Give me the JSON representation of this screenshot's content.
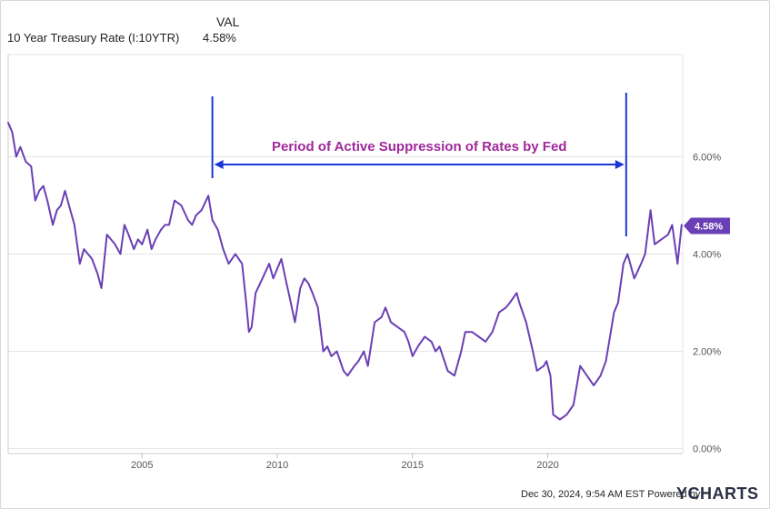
{
  "legend": {
    "header": "VAL",
    "series_name": "10 Year Treasury Rate (I:10YTR)",
    "series_value": "4.58%"
  },
  "footer": {
    "timestamp": "Dec 30, 2024, 9:54 AM EST",
    "powered_by": "Powered by",
    "brand": "YCHARTS"
  },
  "colors": {
    "line": "#6a3fb5",
    "annotation": "#1a37d6",
    "annotation_text": "#a0289a",
    "grid": "#e3e3e3"
  },
  "chart_data": {
    "type": "line",
    "title": "",
    "xlabel": "",
    "ylabel": "",
    "x_ticks": [
      "2005",
      "2010",
      "2015",
      "2020"
    ],
    "y_ticks": [
      "0.00%",
      "2.00%",
      "4.00%",
      "6.00%"
    ],
    "xlim": [
      2000.05,
      2024.99
    ],
    "ylim": [
      -0.1,
      8.1
    ],
    "grid": "horizontal",
    "last_value_label": "4.58%",
    "annotation": {
      "text": "Period of Active Suppression of Rates by Fed",
      "start_x": 2007.6,
      "end_x": 2022.9
    },
    "series": [
      {
        "name": "10 Year Treasury Rate (I:10YTR)",
        "x": [
          2000.05,
          2000.2,
          2000.35,
          2000.5,
          2000.7,
          2000.9,
          2001.05,
          2001.2,
          2001.35,
          2001.5,
          2001.7,
          2001.85,
          2002.0,
          2002.15,
          2002.3,
          2002.5,
          2002.7,
          2002.85,
          2003.0,
          2003.15,
          2003.35,
          2003.5,
          2003.7,
          2003.85,
          2004.0,
          2004.2,
          2004.35,
          2004.5,
          2004.7,
          2004.85,
          2005.0,
          2005.2,
          2005.35,
          2005.5,
          2005.7,
          2005.85,
          2006.0,
          2006.2,
          2006.45,
          2006.7,
          2006.85,
          2007.0,
          2007.2,
          2007.45,
          2007.6,
          2007.8,
          2008.0,
          2008.2,
          2008.45,
          2008.7,
          2008.85,
          2008.95,
          2009.05,
          2009.2,
          2009.45,
          2009.7,
          2009.85,
          2010.0,
          2010.15,
          2010.3,
          2010.5,
          2010.65,
          2010.85,
          2011.0,
          2011.15,
          2011.3,
          2011.5,
          2011.7,
          2011.85,
          2012.0,
          2012.2,
          2012.45,
          2012.6,
          2012.85,
          2013.0,
          2013.2,
          2013.35,
          2013.6,
          2013.85,
          2014.0,
          2014.2,
          2014.45,
          2014.7,
          2014.85,
          2015.0,
          2015.2,
          2015.45,
          2015.7,
          2015.85,
          2016.0,
          2016.3,
          2016.55,
          2016.8,
          2016.95,
          2017.2,
          2017.45,
          2017.7,
          2017.95,
          2018.2,
          2018.45,
          2018.6,
          2018.85,
          2018.95,
          2019.2,
          2019.45,
          2019.6,
          2019.85,
          2019.95,
          2020.1,
          2020.2,
          2020.45,
          2020.7,
          2020.95,
          2021.2,
          2021.45,
          2021.7,
          2021.95,
          2022.15,
          2022.3,
          2022.45,
          2022.6,
          2022.8,
          2022.95,
          2023.2,
          2023.45,
          2023.6,
          2023.8,
          2023.95,
          2024.2,
          2024.45,
          2024.6,
          2024.8,
          2024.95
        ],
        "y": [
          6.7,
          6.5,
          6.0,
          6.2,
          5.9,
          5.8,
          5.1,
          5.3,
          5.4,
          5.1,
          4.6,
          4.9,
          5.0,
          5.3,
          5.0,
          4.6,
          3.8,
          4.1,
          4.0,
          3.9,
          3.6,
          3.3,
          4.4,
          4.3,
          4.2,
          4.0,
          4.6,
          4.4,
          4.1,
          4.3,
          4.2,
          4.5,
          4.1,
          4.3,
          4.5,
          4.6,
          4.6,
          5.1,
          5.0,
          4.7,
          4.6,
          4.8,
          4.9,
          5.2,
          4.7,
          4.5,
          4.1,
          3.8,
          4.0,
          3.8,
          3.0,
          2.4,
          2.5,
          3.2,
          3.5,
          3.8,
          3.5,
          3.7,
          3.9,
          3.5,
          3.0,
          2.6,
          3.3,
          3.5,
          3.4,
          3.2,
          2.9,
          2.0,
          2.1,
          1.9,
          2.0,
          1.6,
          1.5,
          1.7,
          1.8,
          2.0,
          1.7,
          2.6,
          2.7,
          2.9,
          2.6,
          2.5,
          2.4,
          2.2,
          1.9,
          2.1,
          2.3,
          2.2,
          2.0,
          2.1,
          1.6,
          1.5,
          2.0,
          2.4,
          2.4,
          2.3,
          2.2,
          2.4,
          2.8,
          2.9,
          3.0,
          3.2,
          3.0,
          2.6,
          2.0,
          1.6,
          1.7,
          1.8,
          1.5,
          0.7,
          0.6,
          0.7,
          0.9,
          1.7,
          1.5,
          1.3,
          1.5,
          1.8,
          2.3,
          2.8,
          3.0,
          3.8,
          4.0,
          3.5,
          3.8,
          4.0,
          4.9,
          4.2,
          4.3,
          4.4,
          4.6,
          3.8,
          4.6
        ]
      }
    ]
  }
}
